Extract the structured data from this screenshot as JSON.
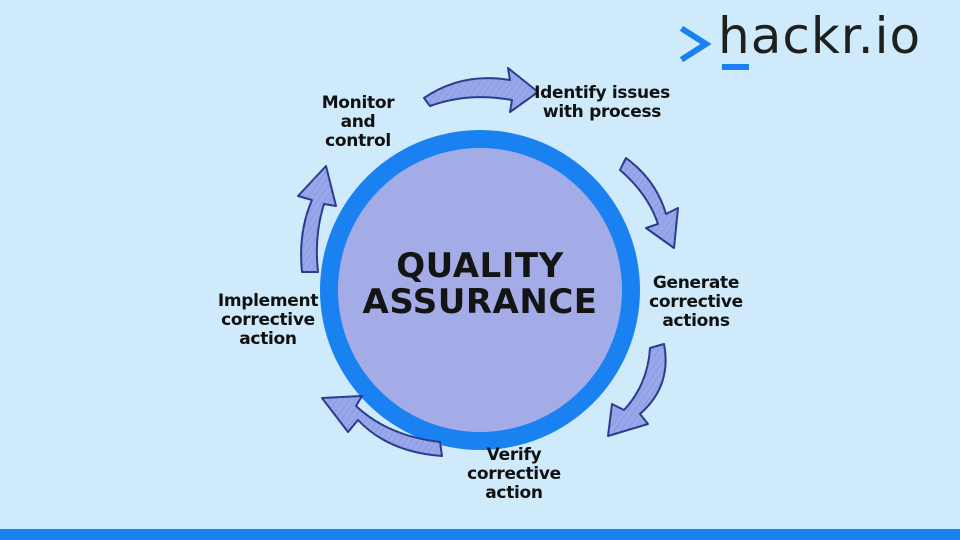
{
  "brand": {
    "logo_text": "hackr.io"
  },
  "diagram": {
    "center_title": "QUALITY ASSURANCE",
    "steps": [
      {
        "label": "Identify issues with process"
      },
      {
        "label": "Generate corrective actions"
      },
      {
        "label": "Verify corrective action"
      },
      {
        "label": "Implement corrective action"
      },
      {
        "label": "Monitor and control"
      }
    ]
  },
  "colors": {
    "background": "#cfeafb",
    "ring": "#1a82f0",
    "center_fill": "#a4ace8",
    "arrow_fill": "#97a7ea",
    "arrow_stroke": "#2a3a8a",
    "text": "#111111"
  }
}
